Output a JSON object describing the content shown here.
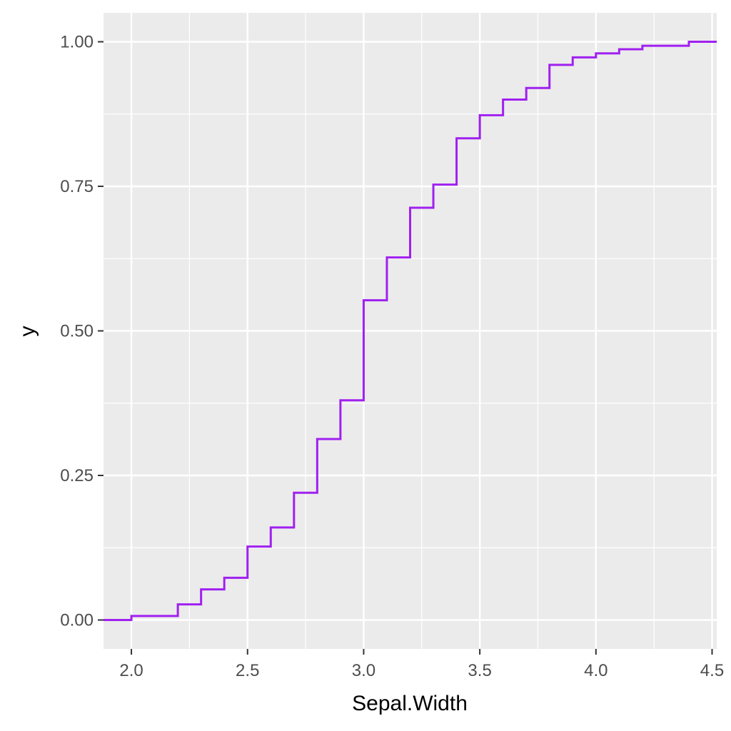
{
  "chart_data": {
    "type": "line",
    "step": true,
    "title": "",
    "xlabel": "Sepal.Width",
    "ylabel": "y",
    "xlim": [
      1.88,
      4.52
    ],
    "ylim": [
      -0.05,
      1.05
    ],
    "x_ticks": [
      2.0,
      2.5,
      3.0,
      3.5,
      4.0,
      4.5
    ],
    "x_tick_labels": [
      "2.0",
      "2.5",
      "3.0",
      "3.5",
      "4.0",
      "4.5"
    ],
    "x_minor_ticks": [
      2.25,
      2.75,
      3.25,
      3.75,
      4.25
    ],
    "y_ticks": [
      0.0,
      0.25,
      0.5,
      0.75,
      1.0
    ],
    "y_tick_labels": [
      "0.00",
      "0.25",
      "0.50",
      "0.75",
      "1.00"
    ],
    "y_minor_ticks": [
      0.125,
      0.375,
      0.625,
      0.875
    ],
    "grid": true,
    "line_color": "#a020f0",
    "panel_color": "#ebebeb",
    "series": [
      {
        "x": [
          2.0,
          2.2,
          2.3,
          2.4,
          2.5,
          2.6,
          2.7,
          2.8,
          2.9,
          3.0,
          3.1,
          3.2,
          3.3,
          3.4,
          3.5,
          3.6,
          3.7,
          3.8,
          3.9,
          4.0,
          4.1,
          4.2,
          4.4
        ],
        "y": [
          0.007,
          0.027,
          0.053,
          0.073,
          0.127,
          0.16,
          0.22,
          0.313,
          0.38,
          0.553,
          0.627,
          0.713,
          0.753,
          0.833,
          0.873,
          0.9,
          0.92,
          0.96,
          0.973,
          0.98,
          0.987,
          0.993,
          1.0
        ]
      }
    ]
  }
}
